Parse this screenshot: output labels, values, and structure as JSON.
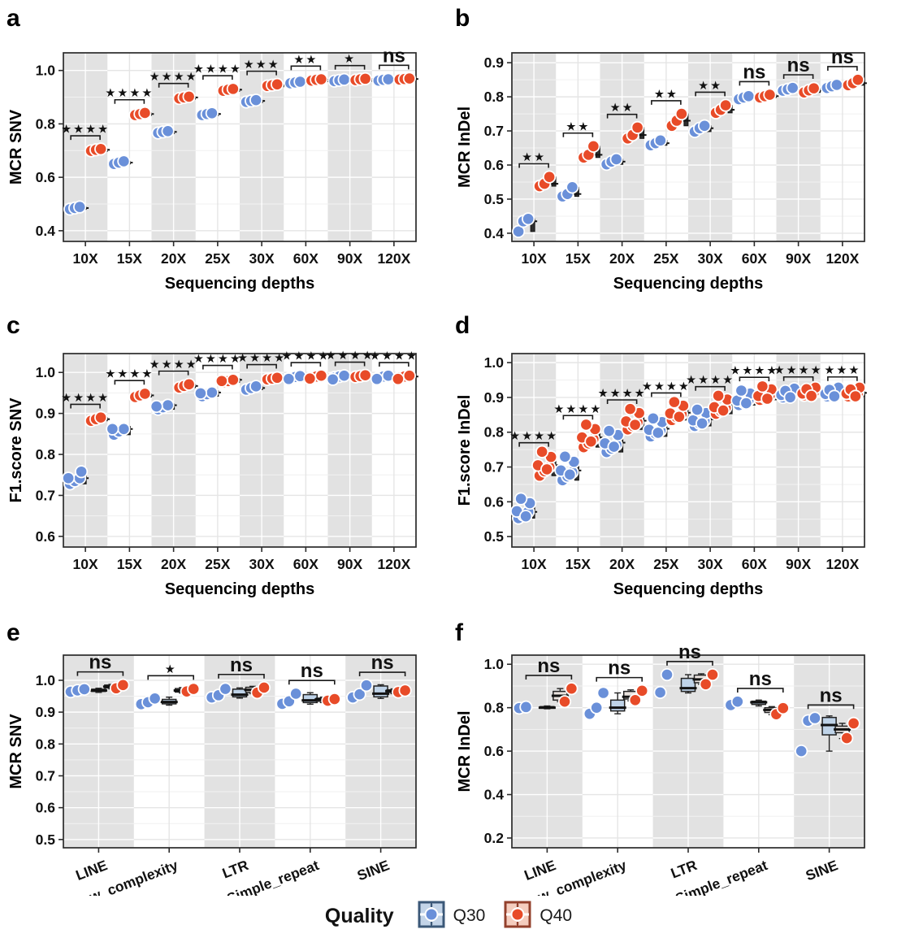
{
  "figure": {
    "background": "#ffffff",
    "colors": {
      "q30_dot": "#6A90D9",
      "q40_dot": "#E84B28",
      "band": "#E2E2E2",
      "box_q30_fill": "#BFD3E8",
      "box_q40_fill": "#E9E2DE",
      "mini_box": "#2E2E2E",
      "axis": "#2B2B2B",
      "sig": "#111111"
    },
    "legend": {
      "title": "Quality",
      "items": [
        {
          "label": "Q30",
          "dot": "#6A90D9",
          "fill": "#C3D4E8",
          "border": "#3B5878"
        },
        {
          "label": "Q40",
          "dot": "#E84B28",
          "fill": "#F5CDBE",
          "border": "#93402C"
        }
      ]
    }
  },
  "chart_data": [
    {
      "id": "a",
      "letter": "a",
      "type": "scatter",
      "ylabel": "MCR SNV",
      "xlabel": "Sequencing depths",
      "yticks": [
        1.0,
        0.8,
        0.6,
        0.4
      ],
      "ylim": [
        0.36,
        1.066
      ],
      "categories": [
        "10X",
        "15X",
        "20X",
        "25X",
        "30X",
        "60X",
        "90X",
        "120X"
      ],
      "significance": [
        "****",
        "****",
        "****",
        "****",
        "***",
        "**",
        "*",
        "ns"
      ],
      "series": [
        {
          "name": "Q30",
          "values": [
            [
              0.481,
              0.485,
              0.489
            ],
            [
              0.65,
              0.655,
              0.66
            ],
            [
              0.766,
              0.77,
              0.773
            ],
            [
              0.833,
              0.837,
              0.84
            ],
            [
              0.882,
              0.886,
              0.889
            ],
            [
              0.952,
              0.955,
              0.958
            ],
            [
              0.96,
              0.963,
              0.966
            ],
            [
              0.962,
              0.965,
              0.967
            ]
          ]
        },
        {
          "name": "Q40",
          "values": [
            [
              0.699,
              0.703,
              0.706
            ],
            [
              0.833,
              0.837,
              0.841
            ],
            [
              0.895,
              0.899,
              0.902
            ],
            [
              0.924,
              0.928,
              0.931
            ],
            [
              0.942,
              0.945,
              0.948
            ],
            [
              0.962,
              0.965,
              0.967
            ],
            [
              0.964,
              0.967,
              0.969
            ],
            [
              0.966,
              0.968,
              0.97
            ]
          ]
        }
      ]
    },
    {
      "id": "b",
      "letter": "b",
      "type": "scatter",
      "ylabel": "MCR InDel",
      "xlabel": "Sequencing depths",
      "yticks": [
        0.9,
        0.8,
        0.7,
        0.6,
        0.5,
        0.4
      ],
      "ylim": [
        0.376,
        0.929
      ],
      "categories": [
        "10X",
        "15X",
        "20X",
        "25X",
        "30X",
        "60X",
        "90X",
        "120X"
      ],
      "significance": [
        "**",
        "**",
        "**",
        "**",
        "**",
        "ns",
        "ns",
        "ns"
      ],
      "series": [
        {
          "name": "Q30",
          "values": [
            [
              0.405,
              0.435,
              0.442
            ],
            [
              0.508,
              0.515,
              0.535
            ],
            [
              0.602,
              0.61,
              0.617
            ],
            [
              0.658,
              0.664,
              0.672
            ],
            [
              0.698,
              0.708,
              0.715
            ],
            [
              0.793,
              0.798,
              0.802
            ],
            [
              0.818,
              0.822,
              0.826
            ],
            [
              0.826,
              0.831,
              0.835
            ]
          ]
        },
        {
          "name": "Q40",
          "values": [
            [
              0.538,
              0.545,
              0.565
            ],
            [
              0.622,
              0.63,
              0.655
            ],
            [
              0.678,
              0.688,
              0.71
            ],
            [
              0.715,
              0.73,
              0.75
            ],
            [
              0.753,
              0.762,
              0.775
            ],
            [
              0.798,
              0.802,
              0.806
            ],
            [
              0.813,
              0.819,
              0.825
            ],
            [
              0.834,
              0.84,
              0.85
            ]
          ]
        }
      ]
    },
    {
      "id": "c",
      "letter": "c",
      "type": "scatter",
      "ylabel": "F1.score SNV",
      "xlabel": "Sequencing depths",
      "yticks": [
        1.0,
        0.9,
        0.8,
        0.7,
        0.6
      ],
      "ylim": [
        0.574,
        1.046
      ],
      "categories": [
        "10X",
        "15X",
        "20X",
        "25X",
        "30X",
        "60X",
        "90X",
        "120X"
      ],
      "significance": [
        "****",
        "****",
        "****",
        "****",
        "****",
        "****",
        "****",
        "****"
      ],
      "series": [
        {
          "name": "Q30",
          "values": [
            [
              0.728,
              0.735,
              0.742,
              0.748,
              0.752
            ],
            [
              0.848,
              0.856,
              0.862,
              0.868
            ],
            [
              0.91,
              0.915,
              0.92,
              0.923
            ],
            [
              0.942,
              0.947,
              0.951,
              0.955
            ],
            [
              0.958,
              0.962,
              0.966
            ],
            [
              0.987,
              0.989,
              0.991,
              0.99
            ],
            [
              0.988,
              0.99,
              0.992,
              0.989
            ],
            [
              0.987,
              0.99,
              0.992,
              0.99
            ]
          ]
        },
        {
          "name": "Q40",
          "values": [
            [
              0.882,
              0.886,
              0.89
            ],
            [
              0.94,
              0.944,
              0.948
            ],
            [
              0.963,
              0.967,
              0.971
            ],
            [
              0.976,
              0.979,
              0.982,
              0.985
            ],
            [
              0.983,
              0.985,
              0.987
            ],
            [
              0.988,
              0.99,
              0.992,
              0.991
            ],
            [
              0.989,
              0.991,
              0.993
            ],
            [
              0.988,
              0.99,
              0.992,
              0.99
            ]
          ]
        }
      ]
    },
    {
      "id": "d",
      "letter": "d",
      "type": "scatter",
      "ylabel": "F1.score InDel",
      "xlabel": "Sequencing depths",
      "yticks": [
        1.0,
        0.9,
        0.8,
        0.7,
        0.6,
        0.5
      ],
      "ylim": [
        0.47,
        1.026
      ],
      "categories": [
        "10X",
        "15X",
        "20X",
        "25X",
        "30X",
        "60X",
        "90X",
        "120X"
      ],
      "significance": [
        "****",
        "****",
        "****",
        "****",
        "****",
        "****",
        "****",
        "***"
      ],
      "series": [
        {
          "name": "Q30",
          "values": [
            [
              0.553,
              0.562,
              0.571,
              0.58,
              0.589,
              0.597,
              0.57
            ],
            [
              0.662,
              0.673,
              0.685,
              0.697,
              0.708,
              0.718,
              0.69
            ],
            [
              0.743,
              0.753,
              0.764,
              0.775,
              0.785,
              0.792,
              0.77
            ],
            [
              0.788,
              0.796,
              0.805,
              0.814,
              0.822,
              0.828,
              0.81
            ],
            [
              0.818,
              0.825,
              0.833,
              0.841,
              0.848,
              0.853,
              0.837
            ],
            [
              0.878,
              0.885,
              0.892,
              0.898,
              0.904,
              0.908,
              0.895
            ],
            [
              0.9,
              0.905,
              0.91,
              0.914,
              0.918,
              0.907,
              0.912
            ],
            [
              0.903,
              0.908,
              0.913,
              0.917,
              0.921,
              0.91,
              0.915
            ]
          ]
        },
        {
          "name": "Q40",
          "values": [
            [
              0.675,
              0.688,
              0.7,
              0.712,
              0.722,
              0.732,
              0.705
            ],
            [
              0.757,
              0.768,
              0.78,
              0.792,
              0.802,
              0.81,
              0.785
            ],
            [
              0.808,
              0.818,
              0.828,
              0.838,
              0.848,
              0.855,
              0.833
            ],
            [
              0.835,
              0.843,
              0.852,
              0.861,
              0.869,
              0.875,
              0.856
            ],
            [
              0.853,
              0.861,
              0.87,
              0.879,
              0.887,
              0.893,
              0.874
            ],
            [
              0.893,
              0.899,
              0.905,
              0.911,
              0.916,
              0.92,
              0.908
            ],
            [
              0.906,
              0.91,
              0.914,
              0.918,
              0.921,
              0.912,
              0.916
            ],
            [
              0.903,
              0.908,
              0.913,
              0.918,
              0.921,
              0.911,
              0.915
            ]
          ]
        }
      ]
    },
    {
      "id": "e",
      "letter": "e",
      "type": "scatter",
      "ylabel": "MCR SNV",
      "xlabel": "",
      "yticks": [
        1.0,
        0.9,
        0.8,
        0.7,
        0.6,
        0.5
      ],
      "ylim": [
        0.474,
        1.079
      ],
      "rotate_labels": true,
      "categories": [
        "LINE",
        "Low_complexity",
        "LTR",
        "Simple_repeat",
        "SINE"
      ],
      "significance": [
        "ns",
        "*",
        "ns",
        "ns",
        "ns"
      ],
      "series": [
        {
          "name": "Q30",
          "values": [
            [
              0.964,
              0.968,
              0.972
            ],
            [
              0.925,
              0.931,
              0.943
            ],
            [
              0.946,
              0.953,
              0.973
            ],
            [
              0.926,
              0.934,
              0.958
            ],
            [
              0.946,
              0.956,
              0.984
            ]
          ]
        },
        {
          "name": "Q40",
          "values": [
            [
              0.975,
              0.985
            ],
            [
              0.965,
              0.973
            ],
            [
              0.961,
              0.977
            ],
            [
              0.936,
              0.941
            ],
            [
              0.963,
              0.968
            ]
          ]
        }
      ],
      "boxes": {
        "Q30": [
          [
            0.962,
            0.965,
            0.968,
            0.972,
            0.975
          ],
          [
            0.922,
            0.926,
            0.932,
            0.94,
            0.947
          ],
          [
            0.944,
            0.948,
            0.955,
            0.972,
            0.976
          ],
          [
            0.925,
            0.93,
            0.937,
            0.955,
            0.961
          ],
          [
            0.943,
            0.948,
            0.958,
            0.982,
            0.986
          ]
        ],
        "Q40": [
          [
            0.973,
            0.976,
            0.98,
            0.985,
            0.987
          ],
          [
            0.96,
            0.963,
            0.968,
            0.974,
            0.977
          ],
          [
            0.958,
            0.962,
            0.97,
            0.978,
            0.981
          ],
          [
            0.93,
            0.934,
            0.94,
            0.944,
            0.947
          ],
          [
            0.958,
            0.962,
            0.966,
            0.97,
            0.973
          ]
        ]
      }
    },
    {
      "id": "f",
      "letter": "f",
      "type": "scatter",
      "ylabel": "MCR InDel",
      "xlabel": "",
      "yticks": [
        1.0,
        0.8,
        0.6,
        0.4,
        0.2
      ],
      "ylim": [
        0.155,
        1.042
      ],
      "rotate_labels": true,
      "categories": [
        "LINE",
        "Low_complexity",
        "LTR",
        "Simple_repeat",
        "SINE"
      ],
      "significance": [
        "ns",
        "ns",
        "ns",
        "ns",
        "ns"
      ],
      "series": [
        {
          "name": "Q30",
          "values": [
            [
              0.798,
              0.803
            ],
            [
              0.772,
              0.8,
              0.868
            ],
            [
              0.87,
              0.952
            ],
            [
              0.812,
              0.828
            ],
            [
              0.6,
              0.74,
              0.752
            ]
          ]
        },
        {
          "name": "Q40",
          "values": [
            [
              0.828,
              0.888
            ],
            [
              0.835,
              0.878
            ],
            [
              0.908,
              0.952
            ],
            [
              0.77,
              0.798
            ],
            [
              0.66,
              0.728
            ]
          ]
        }
      ],
      "boxes": {
        "Q30": [
          [
            0.795,
            0.798,
            0.8,
            0.805,
            0.808
          ],
          [
            0.772,
            0.785,
            0.8,
            0.835,
            0.868
          ],
          [
            0.868,
            0.875,
            0.89,
            0.935,
            0.952
          ],
          [
            0.808,
            0.815,
            0.825,
            0.83,
            0.835
          ],
          [
            0.6,
            0.675,
            0.72,
            0.755,
            0.762
          ]
        ],
        "Q40": [
          [
            0.828,
            0.835,
            0.855,
            0.875,
            0.888
          ],
          [
            0.832,
            0.84,
            0.85,
            0.875,
            0.882
          ],
          [
            0.908,
            0.915,
            0.93,
            0.95,
            0.956
          ],
          [
            0.768,
            0.778,
            0.79,
            0.8,
            0.805
          ],
          [
            0.658,
            0.685,
            0.7,
            0.715,
            0.728
          ]
        ]
      }
    }
  ]
}
